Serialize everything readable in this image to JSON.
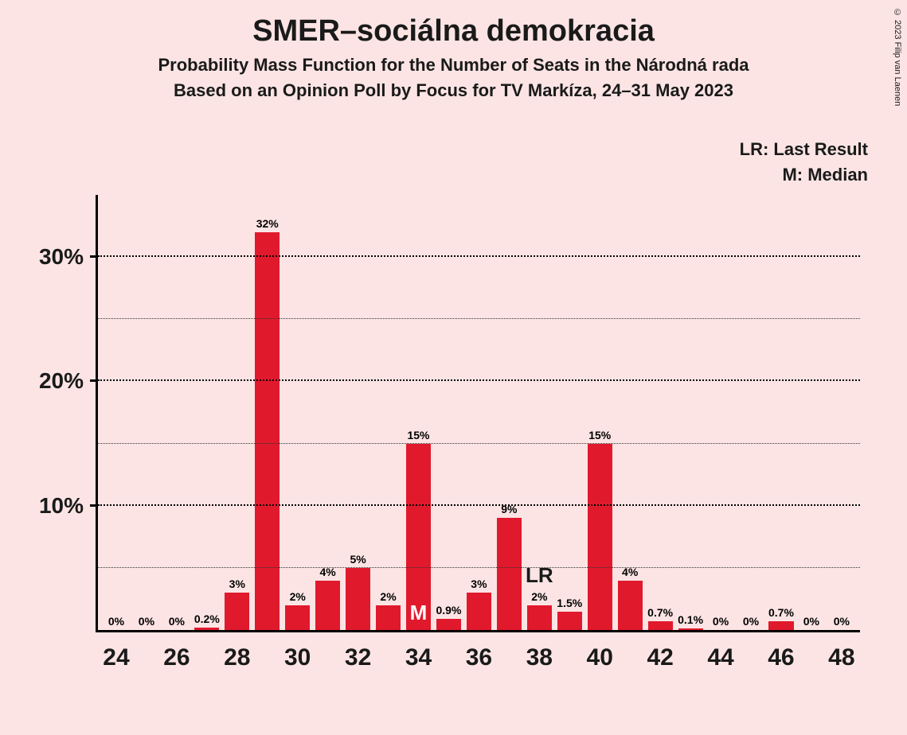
{
  "copyright": "© 2023 Filip van Laenen",
  "title": "SMER–sociálna demokracia",
  "subtitle1": "Probability Mass Function for the Number of Seats in the Národná rada",
  "subtitle2": "Based on an Opinion Poll by Focus for TV Markíza, 24–31 May 2023",
  "legend": {
    "lr": "LR: Last Result",
    "m": "M: Median"
  },
  "chart": {
    "type": "bar",
    "bar_color": "#e1192c",
    "background_color": "#fce4e4",
    "axis_color": "#000000",
    "grid_color": "#000000",
    "text_color": "#1a1a1a",
    "title_fontsize": 38,
    "subtitle_fontsize": 22,
    "axis_label_fontsize": 28,
    "xtick_fontsize": 30,
    "bar_label_fontsize": 14,
    "ylim": [
      0,
      35
    ],
    "y_major_ticks": [
      10,
      20,
      30
    ],
    "y_minor_ticks": [
      5,
      15,
      25
    ],
    "x_range": [
      24,
      48
    ],
    "x_tick_step": 2,
    "bar_width": 0.82,
    "bars": [
      {
        "x": 24,
        "value": 0,
        "label": "0%"
      },
      {
        "x": 25,
        "value": 0,
        "label": "0%"
      },
      {
        "x": 26,
        "value": 0,
        "label": "0%"
      },
      {
        "x": 27,
        "value": 0.2,
        "label": "0.2%"
      },
      {
        "x": 28,
        "value": 3,
        "label": "3%"
      },
      {
        "x": 29,
        "value": 32,
        "label": "32%"
      },
      {
        "x": 30,
        "value": 2,
        "label": "2%"
      },
      {
        "x": 31,
        "value": 4,
        "label": "4%"
      },
      {
        "x": 32,
        "value": 5,
        "label": "5%"
      },
      {
        "x": 33,
        "value": 2,
        "label": "2%"
      },
      {
        "x": 34,
        "value": 15,
        "label": "15%",
        "marker": "M",
        "marker_inside": true
      },
      {
        "x": 35,
        "value": 0.9,
        "label": "0.9%"
      },
      {
        "x": 36,
        "value": 3,
        "label": "3%"
      },
      {
        "x": 37,
        "value": 9,
        "label": "9%"
      },
      {
        "x": 38,
        "value": 2,
        "label": "2%",
        "marker": "LR",
        "marker_inside": false
      },
      {
        "x": 39,
        "value": 1.5,
        "label": "1.5%"
      },
      {
        "x": 40,
        "value": 15,
        "label": "15%"
      },
      {
        "x": 41,
        "value": 4,
        "label": "4%"
      },
      {
        "x": 42,
        "value": 0.7,
        "label": "0.7%"
      },
      {
        "x": 43,
        "value": 0.1,
        "label": "0.1%"
      },
      {
        "x": 44,
        "value": 0,
        "label": "0%"
      },
      {
        "x": 45,
        "value": 0,
        "label": "0%"
      },
      {
        "x": 46,
        "value": 0.7,
        "label": "0.7%"
      },
      {
        "x": 47,
        "value": 0,
        "label": "0%"
      },
      {
        "x": 48,
        "value": 0,
        "label": "0%"
      }
    ]
  }
}
